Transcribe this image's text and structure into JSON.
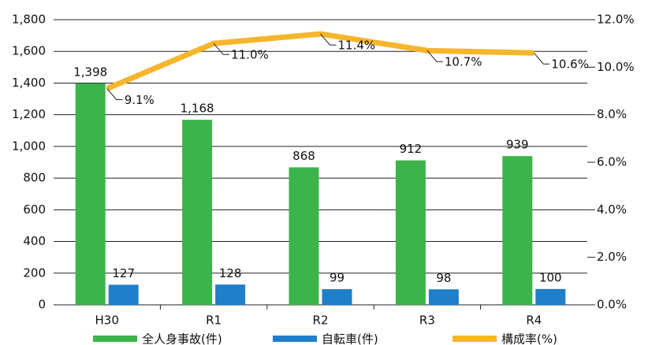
{
  "chart_data": {
    "type": "bar_line",
    "categories": [
      "H30",
      "R1",
      "R2",
      "R3",
      "R4"
    ],
    "series": [
      {
        "name": "全人身事故(件)",
        "color": "#3cb44b",
        "type": "bar",
        "values": [
          1398,
          1168,
          868,
          912,
          939
        ],
        "value_labels": [
          "1,398",
          "1,168",
          "868",
          "912",
          "939"
        ]
      },
      {
        "name": "自転車(件)",
        "color": "#1f7fc8",
        "type": "bar",
        "values": [
          127,
          128,
          99,
          98,
          100
        ]
      },
      {
        "name": "構成率(%)",
        "color": "#f7b52c",
        "type": "line",
        "axis": "y2",
        "values": [
          9.1,
          11.0,
          11.4,
          10.7,
          10.6
        ],
        "value_labels": [
          "9.1%",
          "11.0%",
          "11.4%",
          "10.7%",
          "10.6%"
        ]
      }
    ],
    "ylim": [
      0,
      1800
    ],
    "yticks": [
      0,
      200,
      400,
      600,
      800,
      {
        "value": 1000,
        "label": "1,000"
      },
      {
        "value": 1200,
        "label": "1,200"
      },
      {
        "value": 1400,
        "label": "1,400"
      },
      {
        "value": 1600,
        "label": "1,600"
      },
      {
        "value": 1800,
        "label": "1,800"
      }
    ],
    "y2lim": [
      0,
      12
    ],
    "y2ticks": [
      {
        "value": 0,
        "label": "0.0%"
      },
      {
        "value": 2,
        "label": "2.0%"
      },
      {
        "value": 4,
        "label": "4.0%"
      },
      {
        "value": 6,
        "label": "6.0%"
      },
      {
        "value": 8,
        "label": "8.0%"
      },
      {
        "value": 10,
        "label": "10.0%"
      },
      {
        "value": 12,
        "label": "12.0%"
      }
    ],
    "grid": true
  }
}
